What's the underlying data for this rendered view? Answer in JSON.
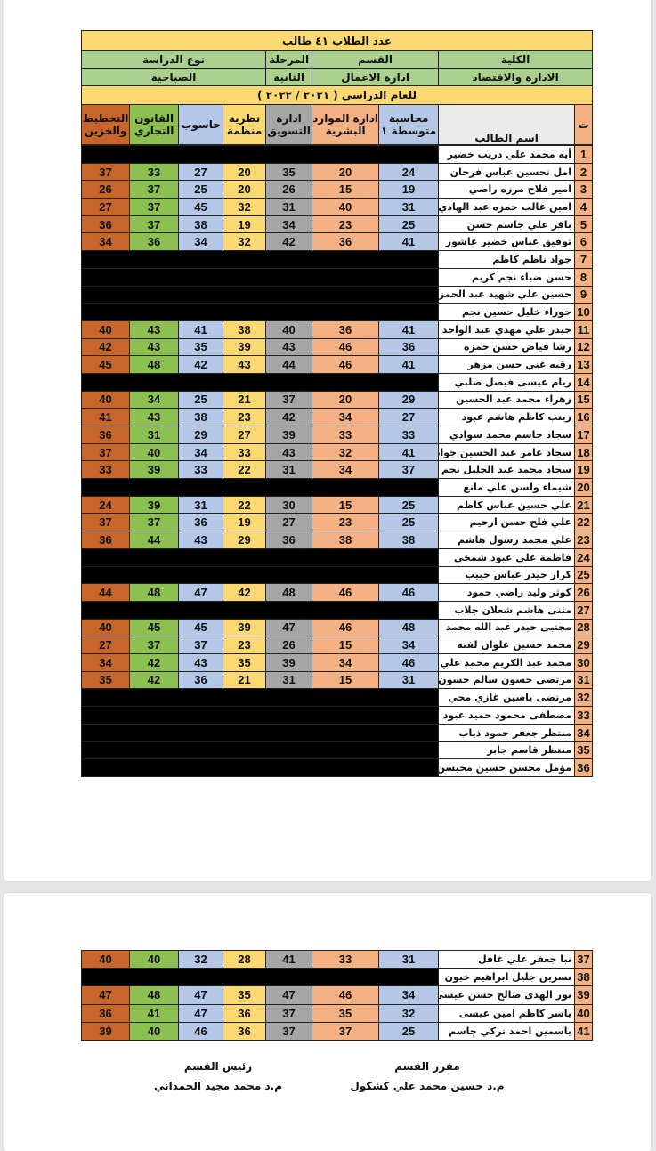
{
  "header": {
    "student_count": "عدد الطلاب ٤١ طالب",
    "college_label": "الكلية",
    "college": "الادارة والاقتصاد",
    "dept_label": "القسم",
    "dept": "ادارة الاعمال",
    "stage_label": "المرحلة",
    "stage": "الثانية",
    "study_type_label": "نوع الدراسة",
    "study_type": "الصباحية",
    "year": "للعام الدراسي ( ٢٠٢١ / ٢٠٢٢ )"
  },
  "columns": {
    "num": "ت",
    "name": "اسم الطالب",
    "subjects": [
      "محاسبة متوسطة ١",
      "ادارة الموارد البشرية",
      "ادارة التسويق",
      "نظرية منظمة",
      "حاسوب",
      "القانون التجاري",
      "التخطيط والخزين"
    ]
  },
  "subject_colors": [
    "#b4c7e7",
    "#f4b183",
    "#a6a6a6",
    "#fcd873",
    "#b4c7e7",
    "#8cc152",
    "#c8652a"
  ],
  "students": [
    {
      "n": "1",
      "name": "أيه محمد علي دريب خضير",
      "g": null
    },
    {
      "n": "2",
      "name": "امل تحسين عباس فرحان",
      "g": [
        "24",
        "20",
        "35",
        "20",
        "27",
        "33",
        "37"
      ]
    },
    {
      "n": "3",
      "name": "امير فلاح مرزه راضي",
      "g": [
        "19",
        "15",
        "26",
        "20",
        "25",
        "37",
        "26"
      ]
    },
    {
      "n": "4",
      "name": "امين غالب حمزه عبد الهادي",
      "g": [
        "31",
        "40",
        "31",
        "32",
        "45",
        "37",
        "27"
      ]
    },
    {
      "n": "5",
      "name": "باقر علي جاسم حسن",
      "g": [
        "25",
        "23",
        "34",
        "19",
        "38",
        "37",
        "36"
      ]
    },
    {
      "n": "6",
      "name": "توفيق عباس خضير عاشور",
      "g": [
        "41",
        "36",
        "42",
        "32",
        "34",
        "36",
        "34"
      ]
    },
    {
      "n": "7",
      "name": "جواد ناظم كاظم",
      "g": null
    },
    {
      "n": "8",
      "name": "حسن ضياء نجم كريم",
      "g": null
    },
    {
      "n": "9",
      "name": "حسين علي شهيد عبد الحمزة",
      "g": null
    },
    {
      "n": "10",
      "name": "حوراء خليل حسين نجم",
      "g": null
    },
    {
      "n": "11",
      "name": "حيدر علي مهدي عبد الواحد",
      "g": [
        "41",
        "36",
        "40",
        "38",
        "41",
        "43",
        "40"
      ]
    },
    {
      "n": "12",
      "name": "رشا فياض حسن حمزه",
      "g": [
        "36",
        "46",
        "43",
        "39",
        "35",
        "43",
        "42"
      ]
    },
    {
      "n": "13",
      "name": "رقيه غني حسن مزهر",
      "g": [
        "41",
        "46",
        "44",
        "43",
        "42",
        "48",
        "45"
      ]
    },
    {
      "n": "14",
      "name": "ريام عيسى فيصل صلبي",
      "g": null
    },
    {
      "n": "15",
      "name": "زهراء محمد عبد الحسين",
      "g": [
        "29",
        "20",
        "37",
        "21",
        "25",
        "34",
        "40"
      ]
    },
    {
      "n": "16",
      "name": "زينب كاظم هاشم عبود",
      "g": [
        "27",
        "34",
        "42",
        "23",
        "38",
        "43",
        "41"
      ]
    },
    {
      "n": "17",
      "name": "سجاد جاسم محمد سوادي",
      "g": [
        "33",
        "33",
        "39",
        "27",
        "29",
        "31",
        "36"
      ]
    },
    {
      "n": "18",
      "name": "سجاد عامر عبد الحسين جواد",
      "g": [
        "41",
        "32",
        "43",
        "33",
        "34",
        "40",
        "37"
      ]
    },
    {
      "n": "19",
      "name": "سجاد محمد عبد الجليل نجم",
      "g": [
        "37",
        "34",
        "31",
        "22",
        "33",
        "39",
        "33"
      ]
    },
    {
      "n": "20",
      "name": "شيماء ولسن علي مانع",
      "g": null
    },
    {
      "n": "21",
      "name": "علي حسين عباس كاظم",
      "g": [
        "25",
        "15",
        "30",
        "22",
        "31",
        "39",
        "24"
      ]
    },
    {
      "n": "22",
      "name": "علي فلح حسن ارحيم",
      "g": [
        "25",
        "23",
        "27",
        "19",
        "36",
        "37",
        "37"
      ]
    },
    {
      "n": "23",
      "name": "علي محمد رسول هاشم",
      "g": [
        "38",
        "38",
        "36",
        "29",
        "43",
        "44",
        "36"
      ]
    },
    {
      "n": "24",
      "name": "فاطمة علي عبود شمخي",
      "g": null
    },
    {
      "n": "25",
      "name": "كرار حيدر عباس حبيب",
      "g": null
    },
    {
      "n": "26",
      "name": "كوثر وليد راضي حمود",
      "g": [
        "46",
        "46",
        "48",
        "42",
        "47",
        "48",
        "44"
      ]
    },
    {
      "n": "27",
      "name": "مثنى هاشم شعلان جلاب",
      "g": null
    },
    {
      "n": "28",
      "name": "مجتبى حيدر عبد الله محمد",
      "g": [
        "48",
        "46",
        "47",
        "39",
        "45",
        "45",
        "40"
      ]
    },
    {
      "n": "29",
      "name": "محمد حسين علوان لفته",
      "g": [
        "34",
        "15",
        "26",
        "23",
        "37",
        "37",
        "27"
      ]
    },
    {
      "n": "30",
      "name": "محمد عبد الكريم محمد علي",
      "g": [
        "46",
        "34",
        "39",
        "35",
        "43",
        "42",
        "34"
      ]
    },
    {
      "n": "31",
      "name": "مرتضى حسون سالم حسون",
      "g": [
        "31",
        "15",
        "31",
        "21",
        "36",
        "42",
        "35"
      ]
    },
    {
      "n": "32",
      "name": "مرتضى ياسين غازي محي",
      "g": null
    },
    {
      "n": "33",
      "name": "مصطفى محمود حميد عبود",
      "g": null
    },
    {
      "n": "34",
      "name": "منتظر جعفر حمود ذياب",
      "g": null
    },
    {
      "n": "35",
      "name": "منتظر قاسم جابر",
      "g": null
    },
    {
      "n": "36",
      "name": "مؤمل محسن حسين محيسن",
      "g": null
    }
  ],
  "students_page2": [
    {
      "n": "37",
      "name": "نبا جعفر علي غافل",
      "g": [
        "31",
        "33",
        "41",
        "28",
        "32",
        "40",
        "40"
      ]
    },
    {
      "n": "38",
      "name": "نسرين جليل ابراهيم خيون",
      "g": null
    },
    {
      "n": "39",
      "name": "نور الهدى صالح حسن عيسى",
      "g": [
        "34",
        "46",
        "47",
        "35",
        "47",
        "48",
        "47"
      ]
    },
    {
      "n": "40",
      "name": "ياسر كاظم امين عيسى",
      "g": [
        "32",
        "35",
        "37",
        "36",
        "47",
        "41",
        "36"
      ]
    },
    {
      "n": "41",
      "name": "ياسمين احمد تركي جاسم",
      "g": [
        "25",
        "37",
        "37",
        "36",
        "46",
        "40",
        "39"
      ]
    }
  ],
  "signatures": {
    "rapporteur_title": "مقرر القسم",
    "rapporteur_name": "م.د حسين محمد علي كشكول",
    "head_title": "رئيس القسم",
    "head_name": "م.د محمد مجيد الحمداني"
  }
}
